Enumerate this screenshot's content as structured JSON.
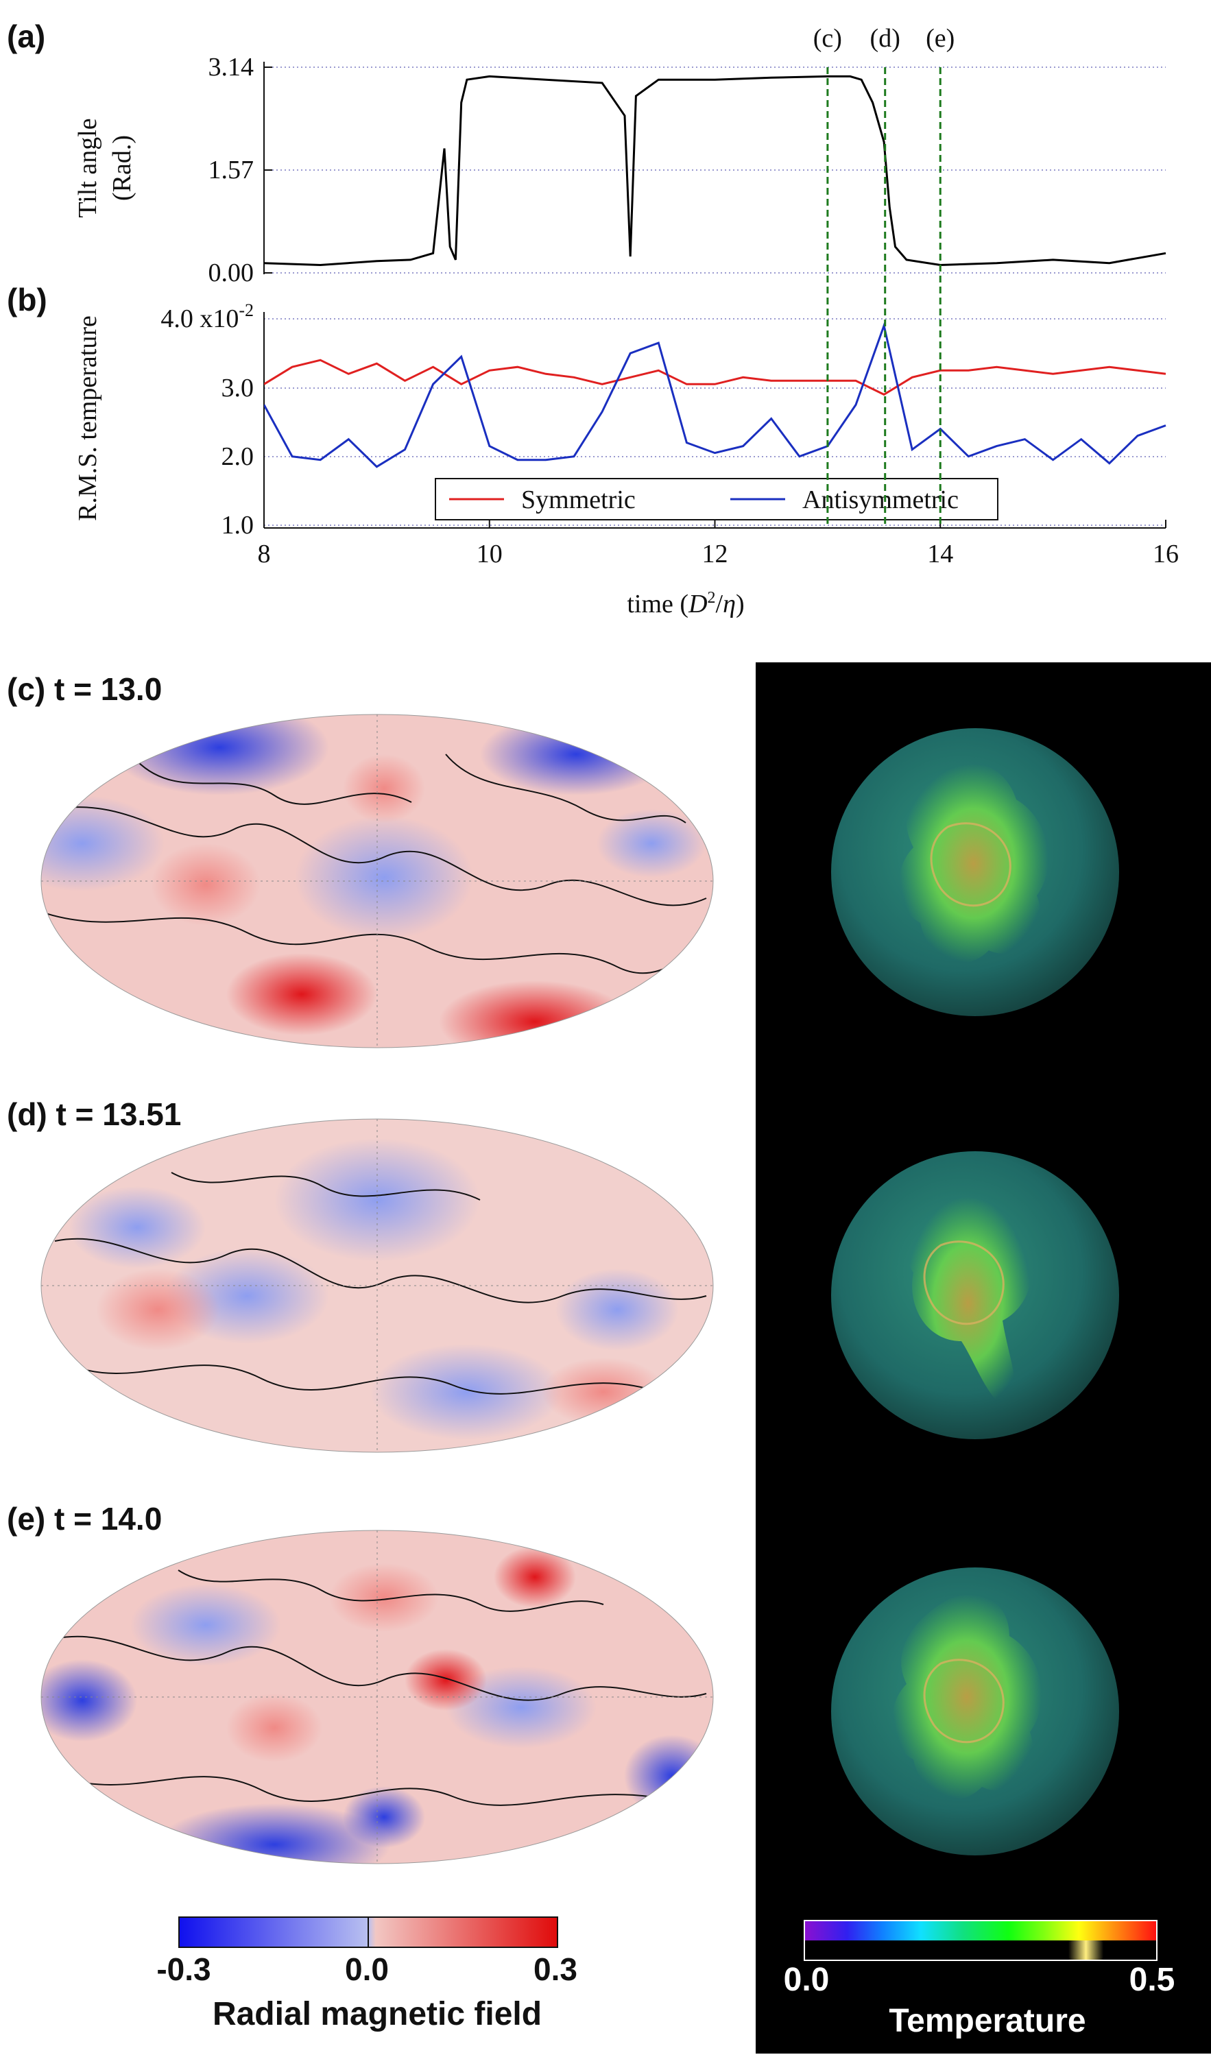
{
  "panels": {
    "a": {
      "label": "(a)"
    },
    "b": {
      "label": "(b)"
    },
    "c": {
      "label": "(c) t = 13.0"
    },
    "d": {
      "label": "(d) t = 13.51"
    },
    "e": {
      "label": "(e) t = 14.0"
    }
  },
  "markers": [
    {
      "label": "(c)",
      "x": 13.0
    },
    {
      "label": "(d)",
      "x": 13.51
    },
    {
      "label": "(e)",
      "x": 14.0
    }
  ],
  "chart_data": [
    {
      "type": "line",
      "ylabel_line1": "Tilt angle",
      "ylabel_line2": "(Rad.)",
      "xlim": [
        8,
        16
      ],
      "ylim": [
        0,
        3.14
      ],
      "yticks": [
        "0.00",
        "1.57",
        "3.14"
      ],
      "grid": "horizontal dotted",
      "series": [
        {
          "color": "#000000",
          "x": [
            8.0,
            8.5,
            9.0,
            9.3,
            9.5,
            9.6,
            9.65,
            9.7,
            9.75,
            9.8,
            10.0,
            10.5,
            11.0,
            11.2,
            11.25,
            11.3,
            11.5,
            12.0,
            12.5,
            13.0,
            13.2,
            13.3,
            13.4,
            13.5,
            13.55,
            13.6,
            13.7,
            14.0,
            14.5,
            15.0,
            15.5,
            16.0
          ],
          "values": [
            0.15,
            0.12,
            0.18,
            0.2,
            0.3,
            1.9,
            0.4,
            0.2,
            2.6,
            2.95,
            3.0,
            2.95,
            2.9,
            2.4,
            0.25,
            2.7,
            2.95,
            2.95,
            2.98,
            3.0,
            3.0,
            2.95,
            2.6,
            2.0,
            1.0,
            0.4,
            0.2,
            0.12,
            0.15,
            0.2,
            0.15,
            0.3
          ]
        }
      ]
    },
    {
      "type": "line",
      "ylabel": "R.M.S. temperature",
      "xlabel": "time (D²/η)",
      "xlim": [
        8,
        16
      ],
      "ylim": [
        0.01,
        0.04
      ],
      "yticks": [
        "1.0",
        "2.0",
        "3.0",
        "4.0 x10-2"
      ],
      "xticks": [
        "8",
        "10",
        "12",
        "14",
        "16"
      ],
      "grid": "horizontal dotted",
      "legend": "bottom-center",
      "series": [
        {
          "name": "Symmetric",
          "color": "#e02020",
          "x": [
            8.0,
            8.25,
            8.5,
            8.75,
            9.0,
            9.25,
            9.5,
            9.75,
            10.0,
            10.25,
            10.5,
            10.75,
            11.0,
            11.25,
            11.5,
            11.75,
            12.0,
            12.25,
            12.5,
            12.75,
            13.0,
            13.25,
            13.5,
            13.75,
            14.0,
            14.25,
            14.5,
            14.75,
            15.0,
            15.25,
            15.5,
            15.75,
            16.0
          ],
          "values": [
            0.0305,
            0.033,
            0.034,
            0.032,
            0.0335,
            0.031,
            0.033,
            0.0305,
            0.0325,
            0.033,
            0.032,
            0.0315,
            0.0305,
            0.0315,
            0.0325,
            0.0305,
            0.0305,
            0.0315,
            0.031,
            0.031,
            0.031,
            0.031,
            0.029,
            0.0315,
            0.0325,
            0.0325,
            0.033,
            0.0325,
            0.032,
            0.0325,
            0.033,
            0.0325,
            0.032
          ]
        },
        {
          "name": "Antisymmetric",
          "color": "#1a2fc0",
          "x": [
            8.0,
            8.25,
            8.5,
            8.75,
            9.0,
            9.25,
            9.5,
            9.75,
            10.0,
            10.25,
            10.5,
            10.75,
            11.0,
            11.25,
            11.5,
            11.75,
            12.0,
            12.25,
            12.5,
            12.75,
            13.0,
            13.25,
            13.5,
            13.75,
            14.0,
            14.25,
            14.5,
            14.75,
            15.0,
            15.25,
            15.5,
            15.75,
            16.0
          ],
          "values": [
            0.0275,
            0.02,
            0.0195,
            0.0225,
            0.0185,
            0.021,
            0.0305,
            0.0345,
            0.0215,
            0.0195,
            0.0195,
            0.02,
            0.0265,
            0.035,
            0.0365,
            0.022,
            0.0205,
            0.0215,
            0.0255,
            0.02,
            0.0215,
            0.0275,
            0.039,
            0.021,
            0.024,
            0.02,
            0.0215,
            0.0225,
            0.0195,
            0.0225,
            0.019,
            0.023,
            0.0245
          ]
        }
      ]
    }
  ],
  "colorbars": {
    "magnetic": {
      "min": "-0.3",
      "mid": "0.0",
      "max": "0.3",
      "label": "Radial magnetic field"
    },
    "temperature": {
      "min": "0.0",
      "max": "0.5",
      "label": "Temperature"
    }
  }
}
